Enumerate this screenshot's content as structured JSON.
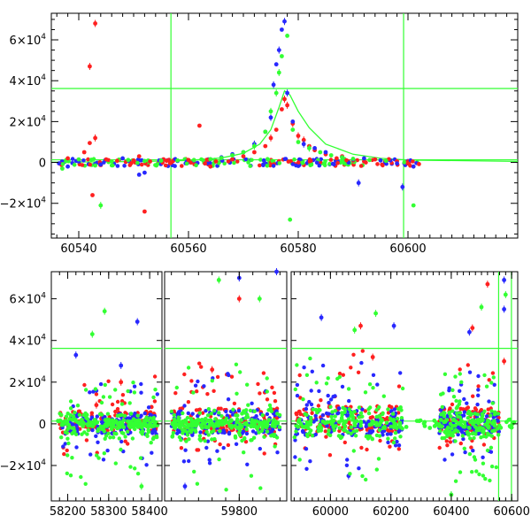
{
  "chart_data": [
    {
      "type": "scatter",
      "title": "",
      "xlabel": "",
      "ylabel": "",
      "xlim": [
        60535,
        60620
      ],
      "ylim": [
        -37000,
        73000
      ],
      "x_ticks": [
        60540,
        60560,
        60580,
        60600
      ],
      "x_tick_labels": [
        "60540",
        "60560",
        "60580",
        "60600"
      ],
      "y_ticks": [
        -20000,
        0,
        20000,
        40000,
        60000
      ],
      "y_tick_labels": [
        {
          "mant": "−2×10",
          "exp": "4"
        },
        {
          "mant": "0",
          "exp": ""
        },
        {
          "mant": "2×10",
          "exp": "4"
        },
        {
          "mant": "4×10",
          "exp": "4"
        },
        {
          "mant": "6×10",
          "exp": "4"
        }
      ],
      "grid": false,
      "reference_lines": {
        "vertical": [
          60556.8,
          60599.2
        ],
        "horizontal": [
          1300,
          36200
        ]
      },
      "model_curve": {
        "color": "#33ff33",
        "x": [
          60535,
          60550,
          60560,
          60566,
          60570,
          60573,
          60575,
          60576.5,
          60577.5,
          60578.5,
          60580,
          60582,
          60585,
          60590,
          60595,
          60600,
          60620
        ],
        "y": [
          100,
          400,
          1000,
          2200,
          4500,
          9000,
          16000,
          27000,
          35000,
          33000,
          25000,
          17000,
          9000,
          4000,
          2000,
          1200,
          500
        ]
      },
      "series": [
        {
          "name": "",
          "color": "#ff2020",
          "points": [
            [
              60538,
              2000
            ],
            [
              60540,
              1200
            ],
            [
              60541,
              5000
            ],
            [
              60542,
              47000
            ],
            [
              60542.5,
              -16000
            ],
            [
              60543,
              68000
            ],
            [
              60542,
              9500
            ],
            [
              60543,
              12000
            ],
            [
              60545,
              1500
            ],
            [
              60547,
              800
            ],
            [
              60550,
              1000
            ],
            [
              60551,
              3000
            ],
            [
              60552,
              -24000
            ],
            [
              60553,
              500
            ],
            [
              60556,
              800
            ],
            [
              60560,
              1200
            ],
            [
              60562,
              18000
            ],
            [
              60563,
              -500
            ],
            [
              60564,
              -2000
            ],
            [
              60565,
              500
            ],
            [
              60568,
              1500
            ],
            [
              60570,
              3000
            ],
            [
              60572,
              5000
            ],
            [
              60574,
              8000
            ],
            [
              60575,
              12000
            ],
            [
              60576,
              16000
            ],
            [
              60577,
              26000
            ],
            [
              60577.5,
              31000
            ],
            [
              60578,
              28000
            ],
            [
              60579,
              19000
            ],
            [
              60580,
              13000
            ],
            [
              60581,
              11000
            ],
            [
              60582,
              8000
            ],
            [
              60583,
              6000
            ],
            [
              60585,
              4000
            ],
            [
              60587,
              2000
            ],
            [
              60588,
              3000
            ],
            [
              60590,
              1000
            ],
            [
              60592,
              500
            ],
            [
              60594,
              1500
            ],
            [
              60596,
              800
            ],
            [
              60598,
              600
            ],
            [
              60600,
              -500
            ],
            [
              60602,
              -800
            ]
          ]
        },
        {
          "name": "",
          "color": "#2828ff",
          "points": [
            [
              60538,
              -2000
            ],
            [
              60540,
              500
            ],
            [
              60544,
              -1000
            ],
            [
              60548,
              2000
            ],
            [
              60551,
              -6000
            ],
            [
              60552,
              -5000
            ],
            [
              60555,
              1000
            ],
            [
              60558,
              700
            ],
            [
              60561,
              1000
            ],
            [
              60564,
              1500
            ],
            [
              60566,
              2500
            ],
            [
              60568,
              4000
            ],
            [
              60570,
              5000
            ],
            [
              60572,
              9000
            ],
            [
              60574,
              15000
            ],
            [
              60575,
              22000
            ],
            [
              60575.5,
              38000
            ],
            [
              60576,
              48000
            ],
            [
              60576.5,
              55000
            ],
            [
              60577,
              65000
            ],
            [
              60577.5,
              69000
            ],
            [
              60578,
              34000
            ],
            [
              60579,
              20000
            ],
            [
              60581,
              9000
            ],
            [
              60583,
              7000
            ],
            [
              60585,
              5000
            ],
            [
              60588,
              2500
            ],
            [
              60590,
              1500
            ],
            [
              60591,
              -10000
            ],
            [
              60592,
              2000
            ],
            [
              60595,
              1000
            ],
            [
              60598,
              -500
            ],
            [
              60599,
              -12000
            ],
            [
              60601,
              -2000
            ]
          ]
        },
        {
          "name": "",
          "color": "#33ff33",
          "points": [
            [
              60537,
              -3000
            ],
            [
              60540,
              1500
            ],
            [
              60543,
              -1500
            ],
            [
              60544,
              -21000
            ],
            [
              60546,
              500
            ],
            [
              60549,
              1200
            ],
            [
              60552,
              700
            ],
            [
              60555,
              900
            ],
            [
              60558,
              1000
            ],
            [
              60561,
              1200
            ],
            [
              60564,
              1600
            ],
            [
              60566,
              2200
            ],
            [
              60568,
              3500
            ],
            [
              60570,
              5000
            ],
            [
              60572,
              8000
            ],
            [
              60574,
              15000
            ],
            [
              60575,
              25000
            ],
            [
              60576,
              34000
            ],
            [
              60576.5,
              44000
            ],
            [
              60577,
              52000
            ],
            [
              60578,
              62000
            ],
            [
              60578.5,
              -28000
            ],
            [
              60579,
              16000
            ],
            [
              60580,
              10000
            ],
            [
              60582,
              7000
            ],
            [
              60584,
              5000
            ],
            [
              60586,
              3500
            ],
            [
              60588,
              2500
            ],
            [
              60590,
              1800
            ],
            [
              60593,
              1200
            ],
            [
              60596,
              800
            ],
            [
              60601,
              -21000
            ]
          ]
        }
      ]
    },
    {
      "type": "scatter",
      "title": "",
      "xlabel": "",
      "ylabel": "",
      "broken_axis": true,
      "segments": [
        {
          "xlim": [
            58160,
            58430
          ],
          "x_ticks": [
            58200,
            58300,
            58400
          ],
          "x_tick_labels": [
            "58200",
            "58300",
            "58400"
          ]
        },
        {
          "xlim": [
            59690,
            59870
          ],
          "x_ticks": [
            59800
          ],
          "x_tick_labels": [
            "59800"
          ]
        },
        {
          "xlim": [
            59870,
            60620
          ],
          "x_ticks": [
            60000,
            60200,
            60400,
            60600
          ],
          "x_tick_labels": [
            "60000",
            "60200",
            "60400",
            "60600"
          ]
        }
      ],
      "ylim": [
        -37000,
        73000
      ],
      "y_ticks": [
        -20000,
        0,
        20000,
        40000,
        60000
      ],
      "y_tick_labels": [
        {
          "mant": "−2×10",
          "exp": "4"
        },
        {
          "mant": "0",
          "exp": ""
        },
        {
          "mant": "2×10",
          "exp": "4"
        },
        {
          "mant": "4×10",
          "exp": "4"
        },
        {
          "mant": "6×10",
          "exp": "4"
        }
      ],
      "grid": false,
      "reference_lines": {
        "vertical": [
          60556.8,
          60599.2
        ],
        "horizontal": [
          1300,
          36200
        ]
      },
      "series": [
        {
          "name": "",
          "color": "#ff2020",
          "clusters": [
            [
              58180,
              58420,
              -15000,
              25000
            ],
            [
              59700,
              59860,
              -15000,
              30000
            ],
            [
              59880,
              60240,
              -15000,
              35000
            ],
            [
              60360,
              60560,
              -12000,
              30000
            ]
          ],
          "highlights": [
            [
              58270,
              9000
            ],
            [
              58330,
              20000
            ],
            [
              59760,
              26000
            ],
            [
              59800,
              60000
            ],
            [
              60100,
              47000
            ],
            [
              60140,
              32000
            ],
            [
              60470,
              46000
            ],
            [
              60520,
              67000
            ],
            [
              60575,
              30000
            ]
          ]
        },
        {
          "name": "",
          "color": "#2828ff",
          "clusters": [
            [
              58180,
              58420,
              -20000,
              20000
            ],
            [
              59700,
              59860,
              -20000,
              25000
            ],
            [
              59880,
              60240,
              -22000,
              30000
            ],
            [
              60360,
              60560,
              -20000,
              25000
            ]
          ],
          "highlights": [
            [
              58220,
              33000
            ],
            [
              58330,
              28000
            ],
            [
              58370,
              49000
            ],
            [
              59720,
              -30000
            ],
            [
              59800,
              70000
            ],
            [
              59855,
              73000
            ],
            [
              59970,
              51000
            ],
            [
              60060,
              -25000
            ],
            [
              60210,
              47000
            ],
            [
              60460,
              44000
            ],
            [
              60575,
              69000
            ],
            [
              60575,
              55000
            ]
          ]
        },
        {
          "name": "",
          "color": "#33ff33",
          "clusters": [
            [
              58180,
              58420,
              -30000,
              20000
            ],
            [
              59700,
              59860,
              -33000,
              30000
            ],
            [
              59880,
              60240,
              -30000,
              33000
            ],
            [
              60360,
              60560,
              -28000,
              25000
            ]
          ],
          "highlights": [
            [
              58290,
              54000
            ],
            [
              58260,
              43000
            ],
            [
              58380,
              -30000
            ],
            [
              59770,
              69000
            ],
            [
              59830,
              60000
            ],
            [
              60080,
              45000
            ],
            [
              60150,
              53000
            ],
            [
              60400,
              -34000
            ],
            [
              60500,
              56000
            ],
            [
              60580,
              62000
            ]
          ]
        }
      ]
    }
  ]
}
